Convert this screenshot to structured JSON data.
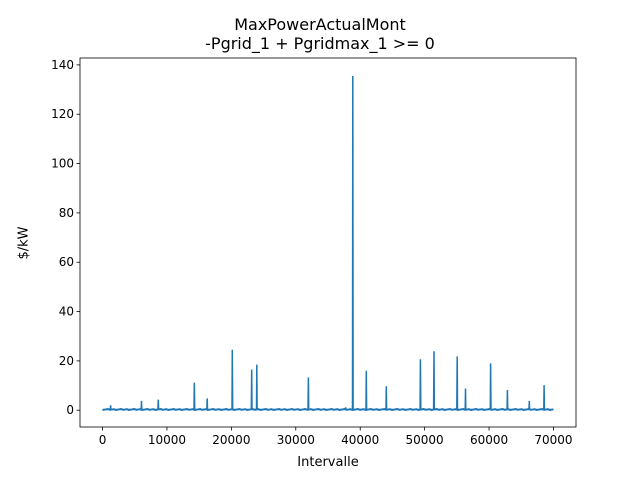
{
  "chart_data": {
    "type": "line",
    "title": "MaxPowerActualMont",
    "subtitle": "-Pgrid_1 + Pgridmax_1 >= 0",
    "xlabel": "Intervalle",
    "ylabel": "$/kW",
    "xlim": [
      -3500,
      73500
    ],
    "ylim": [
      -6.8,
      142.8
    ],
    "xticks": [
      0,
      10000,
      20000,
      30000,
      40000,
      50000,
      60000,
      70000
    ],
    "yticks": [
      0,
      20,
      40,
      60,
      80,
      100,
      120,
      140
    ],
    "grid": false,
    "color": "#1f77b4",
    "baseline": 0.3,
    "series": [
      {
        "values": [
          [
            0,
            0.3
          ],
          [
            1200,
            0.3
          ],
          [
            1250,
            2.0
          ],
          [
            1300,
            0.3
          ],
          [
            6000,
            0.3
          ],
          [
            6050,
            3.8
          ],
          [
            6100,
            0.3
          ],
          [
            8600,
            0.3
          ],
          [
            8650,
            4.3
          ],
          [
            8700,
            0.3
          ],
          [
            14200,
            0.3
          ],
          [
            14250,
            11.2
          ],
          [
            14300,
            0.3
          ],
          [
            16200,
            0.3
          ],
          [
            16250,
            4.8
          ],
          [
            16300,
            0.3
          ],
          [
            20100,
            0.3
          ],
          [
            20150,
            24.5
          ],
          [
            20200,
            0.3
          ],
          [
            23100,
            0.3
          ],
          [
            23150,
            16.5
          ],
          [
            23200,
            0.3
          ],
          [
            23900,
            0.3
          ],
          [
            23950,
            18.5
          ],
          [
            24000,
            0.3
          ],
          [
            31900,
            0.3
          ],
          [
            31950,
            13.3
          ],
          [
            32000,
            0.3
          ],
          [
            37700,
            0.3
          ],
          [
            37750,
            1.2
          ],
          [
            37800,
            0.3
          ],
          [
            38800,
            0.3
          ],
          [
            38850,
            135.5
          ],
          [
            38900,
            0.3
          ],
          [
            40900,
            0.3
          ],
          [
            40950,
            16.0
          ],
          [
            41000,
            0.3
          ],
          [
            44000,
            0.3
          ],
          [
            44050,
            9.7
          ],
          [
            44100,
            0.3
          ],
          [
            49300,
            0.3
          ],
          [
            49350,
            20.7
          ],
          [
            49400,
            0.3
          ],
          [
            51400,
            0.3
          ],
          [
            51450,
            23.9
          ],
          [
            51500,
            0.3
          ],
          [
            55000,
            0.3
          ],
          [
            55050,
            21.8
          ],
          [
            55100,
            0.3
          ],
          [
            56300,
            0.3
          ],
          [
            56350,
            8.8
          ],
          [
            56400,
            0.3
          ],
          [
            60200,
            0.3
          ],
          [
            60250,
            19.0
          ],
          [
            60300,
            0.3
          ],
          [
            62800,
            0.3
          ],
          [
            62850,
            8.2
          ],
          [
            62900,
            0.3
          ],
          [
            66200,
            0.3
          ],
          [
            66250,
            3.8
          ],
          [
            66300,
            0.3
          ],
          [
            68500,
            0.3
          ],
          [
            68550,
            10.2
          ],
          [
            68600,
            0.3
          ],
          [
            70000,
            0.3
          ]
        ]
      }
    ]
  }
}
